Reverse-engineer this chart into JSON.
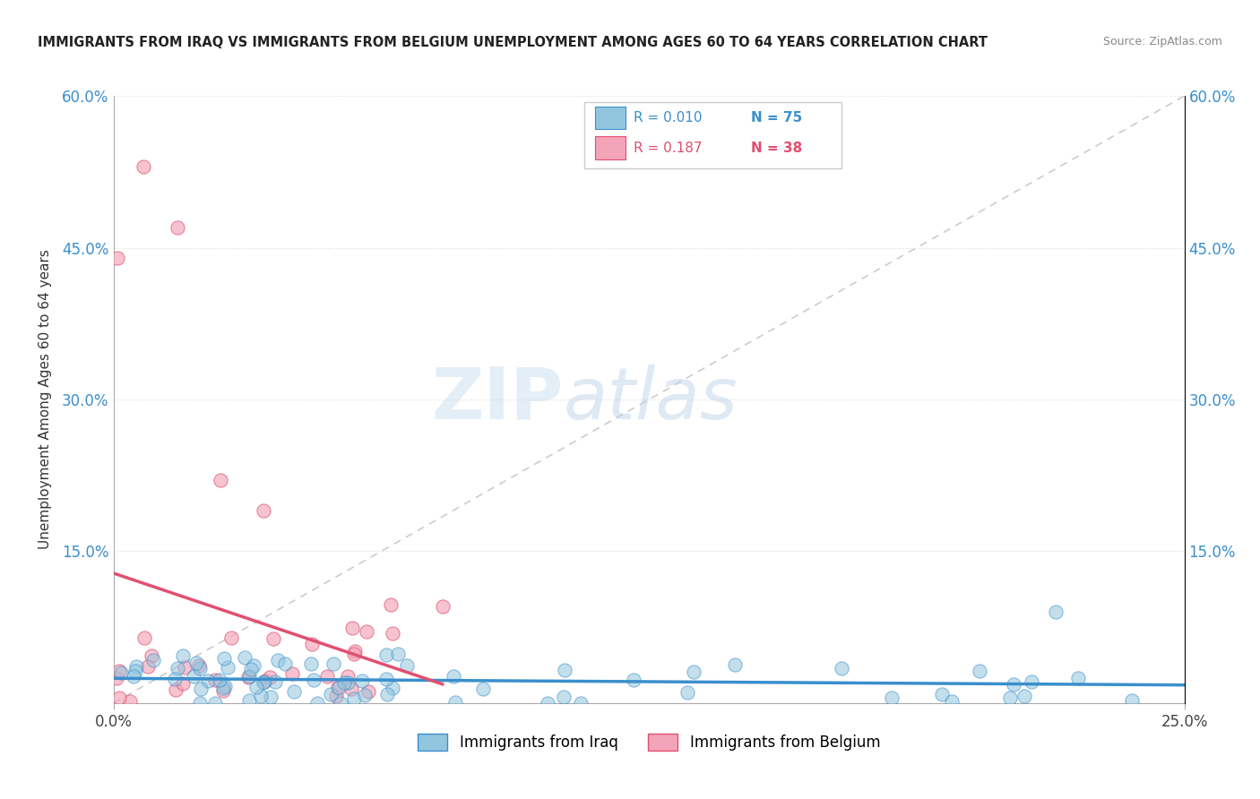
{
  "title": "IMMIGRANTS FROM IRAQ VS IMMIGRANTS FROM BELGIUM UNEMPLOYMENT AMONG AGES 60 TO 64 YEARS CORRELATION CHART",
  "source": "Source: ZipAtlas.com",
  "xlim": [
    0.0,
    0.25
  ],
  "ylim": [
    0.0,
    0.6
  ],
  "ylabel": "Unemployment Among Ages 60 to 64 years",
  "legend_iraq": "Immigrants from Iraq",
  "legend_belgium": "Immigrants from Belgium",
  "R_iraq": "0.010",
  "N_iraq": "75",
  "R_belgium": "0.187",
  "N_belgium": "38",
  "color_iraq": "#92c5de",
  "color_belgium": "#f4a4b8",
  "color_iraq_reg": "#3a8fcc",
  "color_belgium_reg": "#e05070",
  "background_color": "#ffffff",
  "watermark_zip": "ZIP",
  "watermark_atlas": "atlas",
  "grid_color": "#dddddd",
  "diag_color": "#cccccc",
  "title_color": "#222222",
  "source_color": "#888888",
  "axis_label_color": "#333333",
  "tick_color_blue": "#3a8fcc",
  "legend_R_color_iraq": "#3a8fcc",
  "legend_N_color_iraq": "#3a8fcc",
  "legend_R_color_belgium": "#e05070",
  "legend_N_color_belgium": "#e05070"
}
